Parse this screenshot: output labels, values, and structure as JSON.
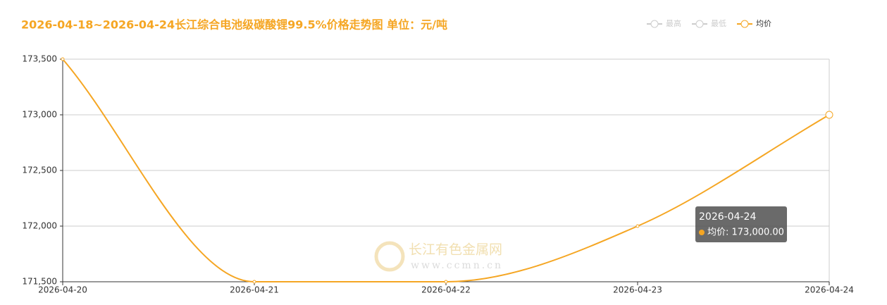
{
  "chart_data": {
    "type": "line",
    "title": "2026-04-18~2026-04-24长江综合电池级碳酸锂99.5%价格走势图 单位：元/吨",
    "categories": [
      "2026-04-20",
      "2026-04-21",
      "2026-04-22",
      "2026-04-23",
      "2026-04-24"
    ],
    "series": [
      {
        "name": "均价",
        "color": "#f5a623",
        "values": [
          173500,
          171500,
          171500,
          172000,
          173000
        ]
      }
    ],
    "inactive_legend": [
      {
        "name": "最高",
        "color": "#cccccc"
      },
      {
        "name": "最低",
        "color": "#cccccc"
      }
    ],
    "ylim": [
      171500,
      173500
    ],
    "yticks": [
      {
        "value": 171500,
        "label": "171,500"
      },
      {
        "value": 172000,
        "label": "172,000"
      },
      {
        "value": 172500,
        "label": "172,500"
      },
      {
        "value": 173000,
        "label": "173,000"
      },
      {
        "value": 173500,
        "label": "173,500"
      }
    ],
    "grid": true,
    "smooth": true,
    "tooltip": {
      "index": 4,
      "text": "均价: 173,000.00"
    },
    "watermark": {
      "name": "长江有色金属网",
      "url": "www.ccmn.cn"
    }
  }
}
